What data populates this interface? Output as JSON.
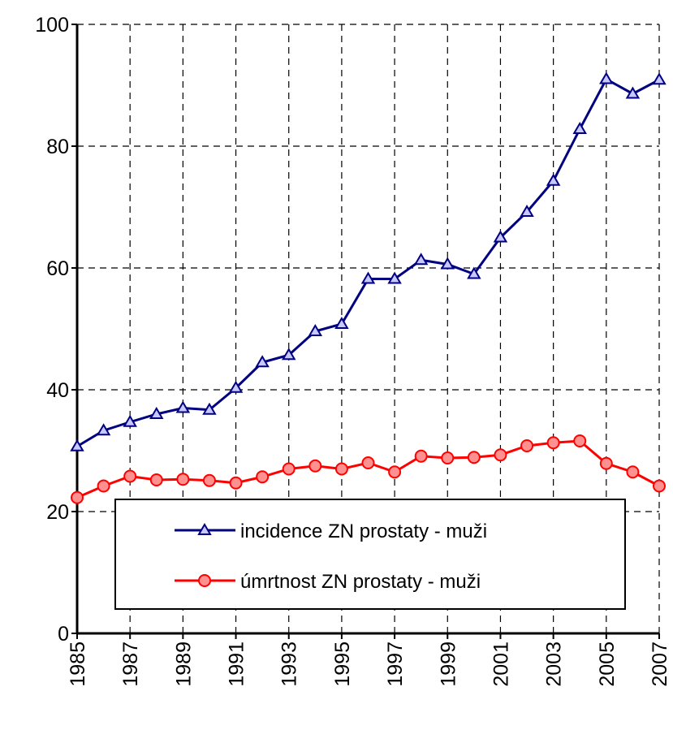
{
  "chart_data": {
    "type": "line",
    "x": [
      1985,
      1986,
      1987,
      1988,
      1989,
      1990,
      1991,
      1992,
      1993,
      1994,
      1995,
      1996,
      1997,
      1998,
      1999,
      2000,
      2001,
      2002,
      2003,
      2004,
      2005,
      2006,
      2007
    ],
    "series": [
      {
        "name": "incidence ZN prostaty - muži",
        "color": "#000080",
        "marker": "triangle",
        "values": [
          30.7,
          33.3,
          34.7,
          36,
          37,
          36.7,
          40.3,
          44.5,
          45.7,
          49.6,
          50.8,
          58.2,
          58.2,
          61.3,
          60.6,
          59,
          65,
          69.2,
          74.3,
          82.8,
          91,
          88.6,
          90.9
        ]
      },
      {
        "name": "úmrtnost ZN prostaty - muži",
        "color": "#ff0000",
        "marker": "circle",
        "values": [
          22.3,
          24.2,
          25.8,
          25.2,
          25.3,
          25.1,
          24.7,
          25.7,
          27,
          27.5,
          27,
          28,
          26.5,
          29.1,
          28.8,
          28.9,
          29.3,
          30.8,
          31.3,
          31.6,
          27.9,
          26.5,
          24.2
        ]
      }
    ],
    "xlim": [
      1985,
      2007
    ],
    "xticks": [
      1985,
      1987,
      1989,
      1991,
      1993,
      1995,
      1997,
      1999,
      2001,
      2003,
      2005,
      2007
    ],
    "ylim": [
      0,
      100
    ],
    "yticks": [
      0,
      20,
      40,
      60,
      80,
      100
    ],
    "grid": true,
    "legend": "lower center"
  }
}
